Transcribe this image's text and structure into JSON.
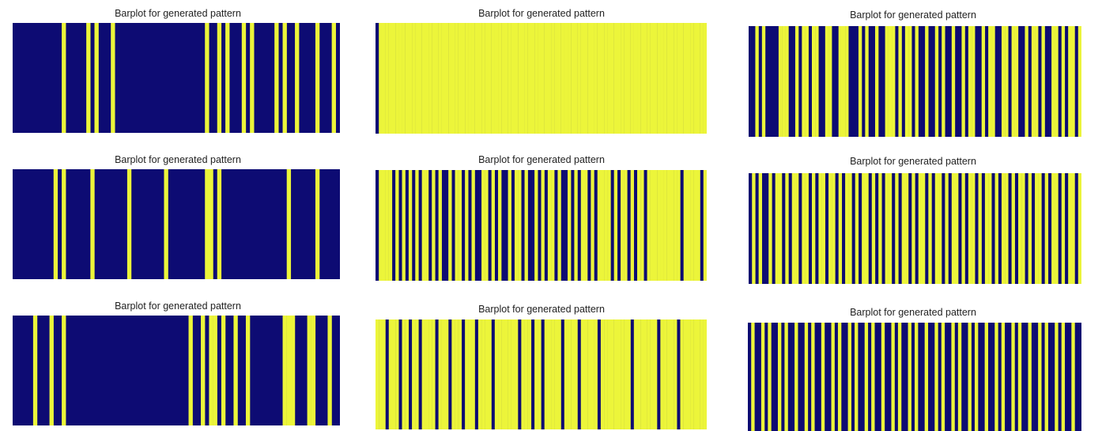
{
  "colors": {
    "zero": "#0d0b73",
    "one": "#ecf53a"
  },
  "chart_data": [
    {
      "type": "heatmap",
      "title": "Barplot for generated pattern",
      "grid": false,
      "length": 80,
      "ones": [
        12,
        18,
        20,
        24,
        47,
        50,
        52,
        56,
        58,
        64,
        66,
        69,
        74,
        78
      ]
    },
    {
      "type": "heatmap",
      "title": "Barplot for generated pattern",
      "grid": false,
      "length": 100,
      "ones": [
        1,
        2,
        3,
        4,
        5,
        6,
        7,
        8,
        9,
        10,
        11,
        12,
        13,
        14,
        15,
        16,
        17,
        18,
        19,
        20,
        21,
        22,
        23,
        24,
        25,
        26,
        27,
        28,
        29,
        30,
        31,
        32,
        33,
        34,
        35,
        36,
        37,
        38,
        39,
        40,
        41,
        42,
        43,
        44,
        45,
        46,
        47,
        48,
        49,
        50,
        51,
        52,
        53,
        54,
        55,
        56,
        57,
        58,
        59,
        60,
        61,
        62,
        63,
        64,
        65,
        66,
        67,
        68,
        69,
        70,
        71,
        72,
        73,
        74,
        75,
        76,
        77,
        78,
        79,
        80,
        81,
        82,
        83,
        84,
        85,
        86,
        87,
        88,
        89,
        90,
        91,
        92,
        93,
        94,
        95,
        96,
        97,
        98,
        99
      ]
    },
    {
      "type": "heatmap",
      "title": "Barplot for generated pattern",
      "grid": false,
      "length": 100,
      "ones": [
        2,
        4,
        9,
        10,
        11,
        14,
        16,
        17,
        19,
        20,
        23,
        24,
        27,
        28,
        29,
        33,
        35,
        38,
        41,
        42,
        43,
        45,
        47,
        48,
        50,
        53,
        56,
        58,
        61,
        64,
        66,
        67,
        70,
        72,
        73,
        76,
        77,
        79,
        80,
        83,
        85,
        86,
        88,
        91,
        92,
        94,
        96,
        97,
        99
      ]
    },
    {
      "type": "heatmap",
      "title": "Barplot for generated pattern",
      "grid": false,
      "length": 80,
      "ones": [
        10,
        12,
        19,
        28,
        37,
        47,
        48,
        50,
        67,
        74
      ]
    },
    {
      "type": "heatmap",
      "title": "Barplot for generated pattern",
      "grid": false,
      "length": 100,
      "ones": [
        1,
        2,
        3,
        4,
        6,
        8,
        10,
        12,
        14,
        15,
        17,
        19,
        22,
        24,
        25,
        27,
        29,
        32,
        33,
        35,
        37,
        40,
        42,
        43,
        45,
        48,
        50,
        52,
        53,
        55,
        58,
        60,
        62,
        63,
        65,
        67,
        68,
        69,
        70,
        72,
        74,
        75,
        77,
        79,
        80,
        82,
        83,
        84,
        85,
        86,
        87,
        88,
        89,
        90,
        91,
        93,
        94,
        95,
        96,
        97,
        99
      ]
    },
    {
      "type": "heatmap",
      "title": "Barplot for generated pattern",
      "grid": false,
      "length": 100,
      "ones": [
        1,
        3,
        6,
        8,
        9,
        11,
        13,
        14,
        16,
        17,
        19,
        21,
        22,
        24,
        25,
        27,
        29,
        30,
        32,
        34,
        35,
        37,
        39,
        41,
        42,
        44,
        46,
        47,
        49,
        51,
        52,
        54,
        56,
        57,
        59,
        61,
        62,
        64,
        66,
        67,
        69,
        71,
        72,
        74,
        76,
        77,
        79,
        81,
        82,
        84,
        86,
        87,
        89,
        91,
        92,
        94,
        96,
        97,
        99
      ]
    },
    {
      "type": "heatmap",
      "title": "Barplot for generated pattern",
      "grid": false,
      "length": 80,
      "ones": [
        5,
        9,
        12,
        43,
        46,
        48,
        49,
        51,
        54,
        57,
        66,
        67,
        68,
        72,
        73,
        77
      ]
    },
    {
      "type": "heatmap",
      "title": "Barplot for generated pattern",
      "grid": false,
      "length": 100,
      "ones": [
        0,
        1,
        2,
        4,
        5,
        6,
        8,
        9,
        11,
        12,
        14,
        15,
        16,
        17,
        19,
        20,
        21,
        23,
        24,
        25,
        27,
        28,
        29,
        31,
        32,
        33,
        34,
        36,
        37,
        38,
        39,
        40,
        41,
        42,
        44,
        45,
        46,
        48,
        49,
        51,
        52,
        53,
        54,
        55,
        57,
        58,
        59,
        60,
        62,
        63,
        64,
        65,
        66,
        68,
        69,
        70,
        71,
        72,
        73,
        74,
        75,
        76,
        78,
        79,
        80,
        81,
        82,
        83,
        84,
        86,
        87,
        88,
        89,
        90,
        92,
        93,
        94,
        95,
        96,
        97,
        98,
        99
      ]
    },
    {
      "type": "heatmap",
      "title": "Barplot for generated pattern",
      "grid": false,
      "length": 100,
      "ones": [
        1,
        4,
        6,
        9,
        11,
        14,
        17,
        19,
        22,
        25,
        27,
        30,
        32,
        35,
        37,
        40,
        43,
        45,
        48,
        50,
        53,
        56,
        58,
        61,
        63,
        66,
        68,
        71,
        74,
        76,
        79,
        81,
        84,
        87,
        89,
        92,
        94,
        97
      ]
    }
  ]
}
